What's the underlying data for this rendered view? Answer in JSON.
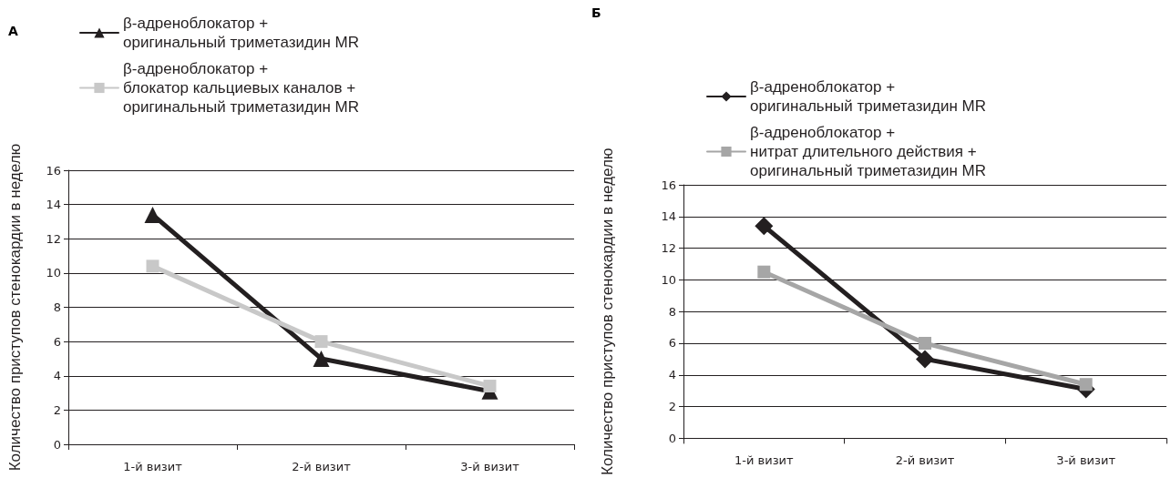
{
  "chart_data": [
    {
      "type": "line",
      "title": "А",
      "ylabel": "Количество приступов стенокардии в неделю",
      "categories": [
        "1-й визит",
        "2-й визит",
        "3-й визит"
      ],
      "ylim": [
        0,
        16
      ],
      "yticks": [
        0,
        2,
        4,
        6,
        8,
        10,
        12,
        14,
        16
      ],
      "grid": "y",
      "legend": "top left",
      "line_style": "solid",
      "series": [
        {
          "name": "β-адреноблокатор + оригинальный триметазидин MR",
          "color": "#231f20",
          "marker": "triangle",
          "values": [
            13.4,
            5,
            3.1
          ]
        },
        {
          "name": "β-адреноблокатор + блокатор кальциевых каналов + оригинальный триметазидин MR",
          "color": "#c8c8c8",
          "marker": "square",
          "values": [
            10.4,
            6,
            3.4
          ]
        }
      ]
    },
    {
      "type": "line",
      "title": "Б",
      "ylabel": "Количество приступов стенокардии в неделю",
      "categories": [
        "1-й визит",
        "2-й визит",
        "3-й визит"
      ],
      "ylim": [
        0,
        16
      ],
      "yticks": [
        0,
        2,
        4,
        6,
        8,
        10,
        12,
        14,
        16
      ],
      "grid": "y",
      "legend": "top left",
      "line_style": "solid",
      "series": [
        {
          "name": "β-адреноблокатор + оригинальный триметазидин MR",
          "color": "#231f20",
          "marker": "diamond",
          "values": [
            13.4,
            5,
            3.1
          ]
        },
        {
          "name": "β-адреноблокатор + нитрат длительного действия + оригинальный триметазидин MR",
          "color": "#a6a6a6",
          "marker": "square",
          "values": [
            10.5,
            6,
            3.4
          ]
        }
      ]
    }
  ]
}
